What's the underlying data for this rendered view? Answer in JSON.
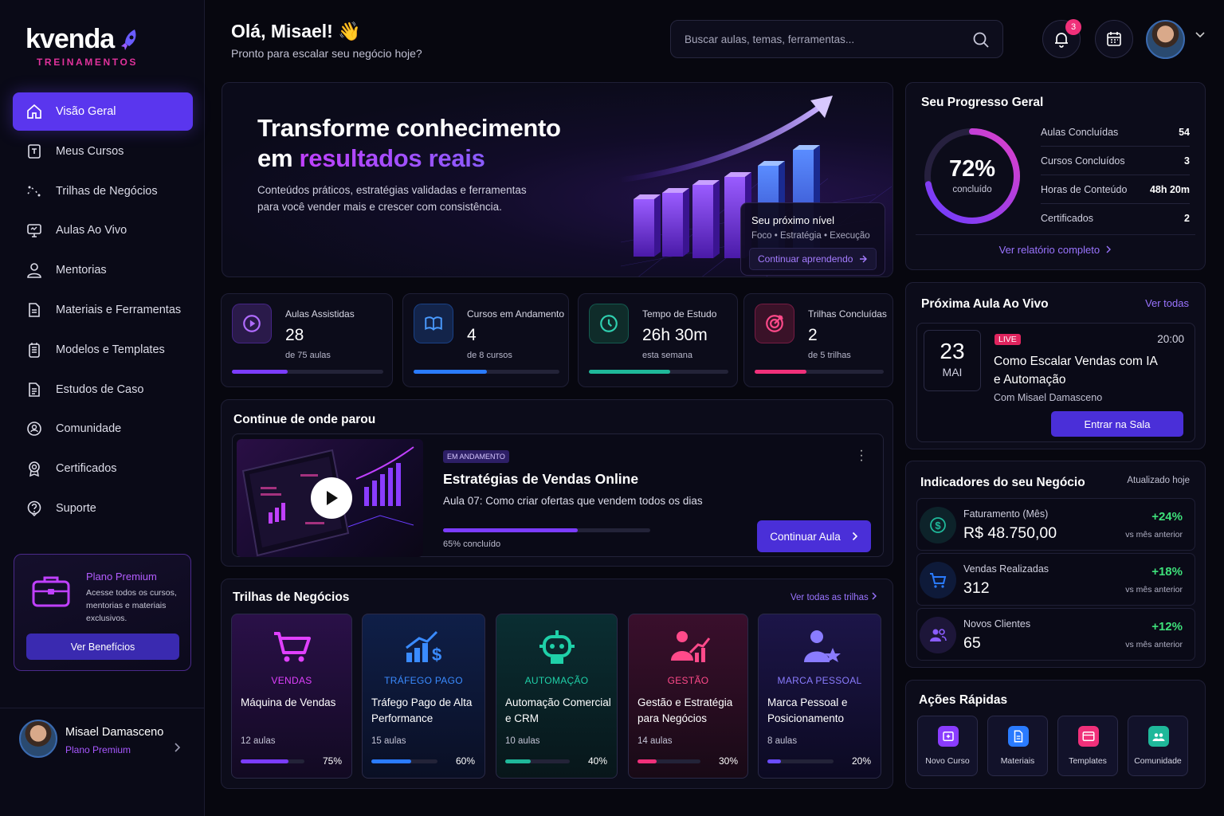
{
  "brand": {
    "name": "kvenda",
    "subtitle": "TREINAMENTOS"
  },
  "sidebar": {
    "items": [
      {
        "label": "Visão Geral",
        "icon": "home-icon",
        "active": true
      },
      {
        "label": "Meus Cursos",
        "icon": "book-icon"
      },
      {
        "label": "Trilhas de Negócios",
        "icon": "route-icon"
      },
      {
        "label": "Aulas Ao Vivo",
        "icon": "monitor-icon"
      },
      {
        "label": "Mentorias",
        "icon": "user-icon"
      },
      {
        "label": "Materiais e Ferramentas",
        "icon": "file-icon"
      },
      {
        "label": "Modelos e Templates",
        "icon": "template-icon"
      },
      {
        "label": "Estudos de Caso",
        "icon": "document-icon"
      },
      {
        "label": "Comunidade",
        "icon": "community-icon"
      },
      {
        "label": "Certificados",
        "icon": "award-icon"
      },
      {
        "label": "Suporte",
        "icon": "help-icon"
      }
    ],
    "promo": {
      "title": "Plano Premium",
      "desc": "Acesse todos os cursos, mentorias e materiais exclusivos.",
      "button": "Ver Benefícios"
    },
    "profile": {
      "name": "Misael Damasceno",
      "plan": "Plano Premium"
    }
  },
  "header": {
    "greeting": "Olá, Misael! 👋",
    "subtitle": "Pronto para escalar seu negócio hoje?",
    "search_placeholder": "Buscar aulas, temas, ferramentas...",
    "notifications": "3"
  },
  "hero": {
    "title_line1": "Transforme conhecimento",
    "title_prefix": "em ",
    "title_highlight": "resultados reais",
    "desc": "Conteúdos práticos, estratégias validadas e ferramentas para você vender mais e crescer com consistência.",
    "next_title": "Seu próximo nível",
    "next_sub": "Foco • Estratégia • Execução",
    "next_button": "Continuar aprendendo"
  },
  "stats": [
    {
      "label": "Aulas Assistidas",
      "value": "28",
      "sub": "de 75 aulas",
      "progress": 0.37,
      "color": "#7b3cff"
    },
    {
      "label": "Cursos em Andamento",
      "value": "4",
      "sub": "de 8 cursos",
      "progress": 0.5,
      "color": "#2a7bff"
    },
    {
      "label": "Tempo de Estudo",
      "value": "26h 30m",
      "sub": "esta semana",
      "progress": 0.58,
      "color": "#1fb89a"
    },
    {
      "label": "Trilhas Concluídas",
      "value": "2",
      "sub": "de 5 trilhas",
      "progress": 0.4,
      "color": "#f0307a"
    }
  ],
  "continue": {
    "title": "Continue de onde parou",
    "tag": "EM ANDAMENTO",
    "course": "Estratégias de Vendas Online",
    "lesson": "Aula 07: Como criar ofertas que vendem todos os dias",
    "progress": 0.65,
    "progress_label": "65% concluído",
    "button": "Continuar Aula"
  },
  "trilhas": {
    "title": "Trilhas de Negócios",
    "link": "Ver todas as trilhas",
    "items": [
      {
        "category": "VENDAS",
        "name": "Máquina de Vendas",
        "lessons": "12 aulas",
        "pct": "75%",
        "progress": 0.75,
        "color": "#e040ff",
        "bar": "#7b3cff"
      },
      {
        "category": "TRÁFEGO PAGO",
        "name": "Tráfego Pago de Alta Performance",
        "lessons": "15 aulas",
        "pct": "60%",
        "progress": 0.6,
        "color": "#3a8bff",
        "bar": "#2a7bff"
      },
      {
        "category": "AUTOMAÇÃO",
        "name": "Automação Comercial e CRM",
        "lessons": "10 aulas",
        "pct": "40%",
        "progress": 0.4,
        "color": "#1fd0a8",
        "bar": "#1fb89a"
      },
      {
        "category": "GESTÃO",
        "name": "Gestão e Estratégia para Negócios",
        "lessons": "14 aulas",
        "pct": "30%",
        "progress": 0.3,
        "color": "#ff4a8a",
        "bar": "#f0307a"
      },
      {
        "category": "MARCA PESSOAL",
        "name": "Marca Pessoal e Posicionamento",
        "lessons": "8 aulas",
        "pct": "20%",
        "progress": 0.2,
        "color": "#8a7cff",
        "bar": "#6a4cff"
      }
    ]
  },
  "progress": {
    "title": "Seu Progresso Geral",
    "value": "72%",
    "value_num": 0.72,
    "sub": "concluído",
    "rows": [
      {
        "label": "Aulas Concluídas",
        "value": "54"
      },
      {
        "label": "Cursos Concluídos",
        "value": "3"
      },
      {
        "label": "Horas de Conteúdo",
        "value": "48h 20m"
      },
      {
        "label": "Certificados",
        "value": "2"
      }
    ],
    "link": "Ver relatório completo"
  },
  "live": {
    "title": "Próxima Aula Ao Vivo",
    "link": "Ver todas",
    "day": "23",
    "month": "MAI",
    "tag": "LIVE",
    "time": "20:00",
    "event": "Como Escalar Vendas com IA e Automação",
    "host": "Com Misael Damasceno",
    "button": "Entrar na Sala"
  },
  "indicators": {
    "title": "Indicadores do seu Negócio",
    "updated": "Atualizado hoje",
    "rows": [
      {
        "label": "Faturamento (Mês)",
        "value": "R$ 48.750,00",
        "change": "+24%",
        "compare": "vs mês anterior",
        "icon": "dollar-icon",
        "color": "#1fb89a"
      },
      {
        "label": "Vendas Realizadas",
        "value": "312",
        "change": "+18%",
        "compare": "vs mês anterior",
        "icon": "cart-icon",
        "color": "#2a7bff"
      },
      {
        "label": "Novos Clientes",
        "value": "65",
        "change": "+12%",
        "compare": "vs mês anterior",
        "icon": "users-icon",
        "color": "#8a5cff"
      }
    ]
  },
  "quick": {
    "title": "Ações Rápidas",
    "items": [
      {
        "label": "Novo Curso",
        "color": "#8a3cff"
      },
      {
        "label": "Materiais",
        "color": "#2a7bff"
      },
      {
        "label": "Templates",
        "color": "#f0307a"
      },
      {
        "label": "Comunidade",
        "color": "#1fb89a"
      }
    ]
  }
}
